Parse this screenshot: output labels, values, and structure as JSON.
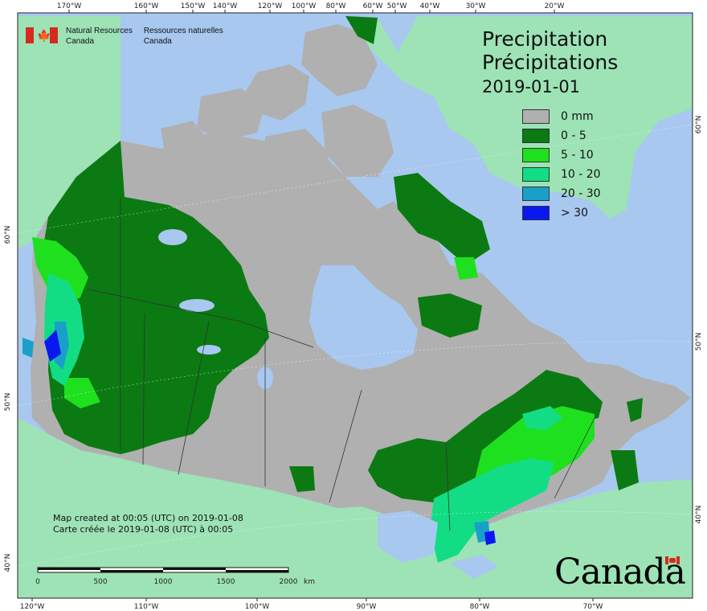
{
  "title": {
    "en": "Precipitation",
    "fr": "Précipitations",
    "date": "2019-01-01"
  },
  "legend": {
    "items": [
      {
        "label": "0 mm",
        "color": "#b0b0b0"
      },
      {
        "label": "0 - 5",
        "color": "#0b7a12"
      },
      {
        "label": "5 - 10",
        "color": "#1ee01e"
      },
      {
        "label": "10 - 20",
        "color": "#12dd84"
      },
      {
        "label": "20 - 30",
        "color": "#1aa0c8"
      },
      {
        "label": "> 30",
        "color": "#0a18f0"
      }
    ]
  },
  "agency": {
    "en_line1": "Natural Resources",
    "en_line2": "Canada",
    "fr_line1": "Ressources naturelles",
    "fr_line2": "Canada"
  },
  "credit": {
    "en": "Map created at 00:05 (UTC) on 2019-01-08",
    "fr": "Carte créée le 2019-01-08 (UTC) à 00:05"
  },
  "wordmark": "Canada",
  "scale_bar": {
    "labels": [
      "0",
      "500",
      "1000",
      "1500",
      "2000"
    ],
    "unit": "km"
  },
  "graticule": {
    "top_labels": [
      "170°W",
      "160°W",
      "150°W",
      "140°W",
      "120°W",
      "100°W",
      "80°W",
      "60°W",
      "50°W",
      "40°W",
      "30°W",
      "20°W"
    ],
    "bottom_labels": [
      "120°W",
      "110°W",
      "100°W",
      "90°W",
      "80°W",
      "70°W"
    ],
    "left_labels": [
      "60°N",
      "50°N",
      "40°N"
    ],
    "right_labels": [
      "60°N",
      "50°N",
      "40°N"
    ]
  },
  "colors": {
    "ocean": "#a8c8f0",
    "foreign_land": "#9de3b6",
    "no_precip": "#b0b0b0"
  }
}
